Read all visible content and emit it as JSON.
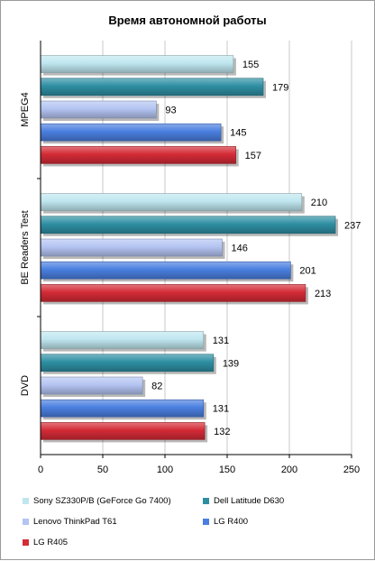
{
  "chart_data": {
    "type": "bar",
    "orientation": "horizontal",
    "title": "Время автономной работы",
    "categories": [
      "MPEG4",
      "BE Readers Test",
      "DVD"
    ],
    "series": [
      {
        "name": "Sony SZ330P/B (GeForce Go 7400)",
        "color": "#bfe6ef",
        "values": [
          155,
          210,
          131
        ]
      },
      {
        "name": "Dell Latitude D630",
        "color": "#2e8fa3",
        "values": [
          179,
          237,
          139
        ]
      },
      {
        "name": "Lenovo ThinkPad T61",
        "color": "#b4c4f2",
        "values": [
          93,
          146,
          82
        ]
      },
      {
        "name": "LG R400",
        "color": "#4a7fe0",
        "values": [
          145,
          201,
          131
        ]
      },
      {
        "name": "LG R405",
        "color": "#d42b36",
        "values": [
          157,
          213,
          132
        ]
      }
    ],
    "xlim": [
      0,
      250
    ],
    "xticks": [
      "0",
      "50",
      "100",
      "150",
      "200",
      "250"
    ],
    "grid": "vertical",
    "legend_position": "bottom",
    "data_labels": true
  }
}
